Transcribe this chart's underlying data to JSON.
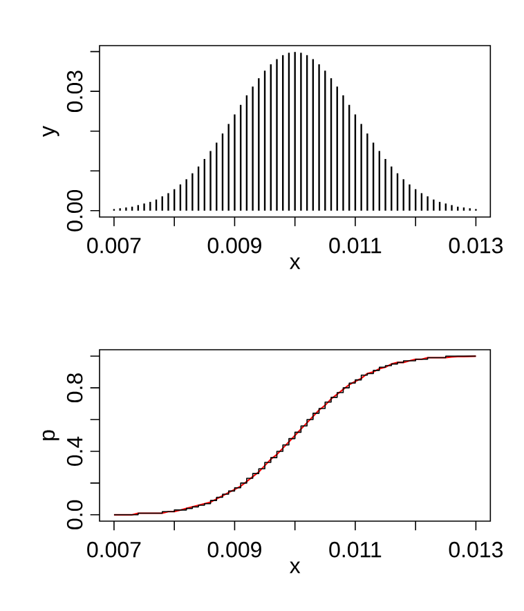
{
  "chart_data": [
    {
      "type": "bar",
      "xlabel": "x",
      "ylabel": "y",
      "color": "#000000",
      "x": [
        0.007,
        0.0071,
        0.0072,
        0.0073,
        0.0074,
        0.0075,
        0.0076,
        0.0077,
        0.0078,
        0.0079,
        0.008,
        0.0081,
        0.0082,
        0.0083,
        0.0084,
        0.0085,
        0.0086,
        0.0087,
        0.0088,
        0.0089,
        0.009,
        0.0091,
        0.0092,
        0.0093,
        0.0094,
        0.0095,
        0.0096,
        0.0097,
        0.0098,
        0.0099,
        0.01,
        0.0101,
        0.0102,
        0.0103,
        0.0104,
        0.0105,
        0.0106,
        0.0107,
        0.0108,
        0.0109,
        0.011,
        0.0111,
        0.0112,
        0.0113,
        0.0114,
        0.0115,
        0.0116,
        0.0117,
        0.0118,
        0.0119,
        0.012,
        0.0121,
        0.0122,
        0.0123,
        0.0124,
        0.0125,
        0.0126,
        0.0127,
        0.0128,
        0.0129,
        0.013
      ],
      "values": [
        0.0004,
        0.0006,
        0.0008,
        0.001,
        0.0014,
        0.0018,
        0.0022,
        0.0028,
        0.0036,
        0.0044,
        0.0054,
        0.0066,
        0.0079,
        0.0094,
        0.0111,
        0.013,
        0.015,
        0.0171,
        0.0194,
        0.0218,
        0.0242,
        0.0266,
        0.029,
        0.0312,
        0.0333,
        0.0352,
        0.0368,
        0.0381,
        0.0391,
        0.0397,
        0.0399,
        0.0397,
        0.0391,
        0.0381,
        0.0368,
        0.0352,
        0.0333,
        0.0312,
        0.029,
        0.0266,
        0.0242,
        0.0218,
        0.0194,
        0.0171,
        0.015,
        0.013,
        0.0111,
        0.0094,
        0.0079,
        0.0066,
        0.0054,
        0.0044,
        0.0036,
        0.0028,
        0.0022,
        0.0018,
        0.0014,
        0.001,
        0.0008,
        0.0006,
        0.0004
      ],
      "xlim": [
        0.00676,
        0.01324
      ],
      "ylim": [
        -0.0016,
        0.0415
      ],
      "xticks": [
        0.007,
        {
          "value": 0.008,
          "label": null
        },
        0.009,
        {
          "value": 0.01,
          "label": null
        },
        0.011,
        {
          "value": 0.012,
          "label": null
        },
        0.013
      ],
      "yticks": [
        {
          "value": 0,
          "label": "0.00"
        },
        {
          "value": 0.01,
          "label": null
        },
        {
          "value": 0.02,
          "label": null
        },
        0.03,
        {
          "value": 0.04,
          "label": null
        }
      ]
    },
    {
      "type": "step",
      "xlabel": "x",
      "ylabel": "p",
      "x": [
        0.007,
        0.0071,
        0.0072,
        0.0073,
        0.0074,
        0.0075,
        0.0076,
        0.0077,
        0.0078,
        0.0079,
        0.008,
        0.0081,
        0.0082,
        0.0083,
        0.0084,
        0.0085,
        0.0086,
        0.0087,
        0.0088,
        0.0089,
        0.009,
        0.0091,
        0.0092,
        0.0093,
        0.0094,
        0.0095,
        0.0096,
        0.0097,
        0.0098,
        0.0099,
        0.01,
        0.0101,
        0.0102,
        0.0103,
        0.0104,
        0.0105,
        0.0106,
        0.0107,
        0.0108,
        0.0109,
        0.011,
        0.0111,
        0.0112,
        0.0113,
        0.0114,
        0.0115,
        0.0116,
        0.0117,
        0.0118,
        0.0119,
        0.012,
        0.0121,
        0.0122,
        0.0123,
        0.0124,
        0.0125,
        0.0126,
        0.0127,
        0.0128,
        0.0129,
        0.013
      ],
      "series": [
        {
          "type": "line",
          "color": "#ff0000",
          "values": [
            0.0,
            0.0,
            0.0,
            0.0,
            0.01,
            0.01,
            0.01,
            0.01,
            0.01,
            0.02,
            0.02,
            0.03,
            0.04,
            0.05,
            0.06,
            0.07,
            0.08,
            0.1,
            0.12,
            0.14,
            0.16,
            0.18,
            0.21,
            0.24,
            0.27,
            0.31,
            0.35,
            0.38,
            0.42,
            0.46,
            0.5,
            0.54,
            0.58,
            0.62,
            0.66,
            0.69,
            0.73,
            0.76,
            0.79,
            0.82,
            0.84,
            0.86,
            0.89,
            0.9,
            0.92,
            0.93,
            0.95,
            0.96,
            0.96,
            0.97,
            0.98,
            0.98,
            0.99,
            0.99,
            0.99,
            0.99,
            0.995,
            0.997,
            0.997,
            0.998,
            0.999
          ]
        },
        {
          "type": "step",
          "color": "#000000",
          "values": [
            0.0,
            0.0,
            0.0,
            0.0,
            0.01,
            0.01,
            0.01,
            0.01,
            0.02,
            0.02,
            0.03,
            0.03,
            0.04,
            0.05,
            0.06,
            0.07,
            0.09,
            0.11,
            0.13,
            0.15,
            0.17,
            0.2,
            0.23,
            0.26,
            0.29,
            0.33,
            0.36,
            0.4,
            0.44,
            0.48,
            0.52,
            0.56,
            0.6,
            0.64,
            0.67,
            0.71,
            0.74,
            0.77,
            0.8,
            0.83,
            0.85,
            0.88,
            0.89,
            0.91,
            0.93,
            0.94,
            0.95,
            0.96,
            0.97,
            0.97,
            0.98,
            0.98,
            0.99,
            0.99,
            0.99,
            1.0,
            1.0,
            1.0,
            1.0,
            1.0,
            1.0
          ]
        }
      ],
      "xlim": [
        0.00676,
        0.01324
      ],
      "ylim": [
        -0.04,
        1.04
      ],
      "xticks": [
        0.007,
        {
          "value": 0.008,
          "label": null
        },
        0.009,
        {
          "value": 0.01,
          "label": null
        },
        0.011,
        {
          "value": 0.012,
          "label": null
        },
        0.013
      ],
      "yticks": [
        {
          "value": 0,
          "label": "0.0"
        },
        {
          "value": 0.2,
          "label": null
        },
        0.4,
        {
          "value": 0.6,
          "label": null
        },
        0.8,
        {
          "value": 1.0,
          "label": null
        }
      ]
    }
  ]
}
